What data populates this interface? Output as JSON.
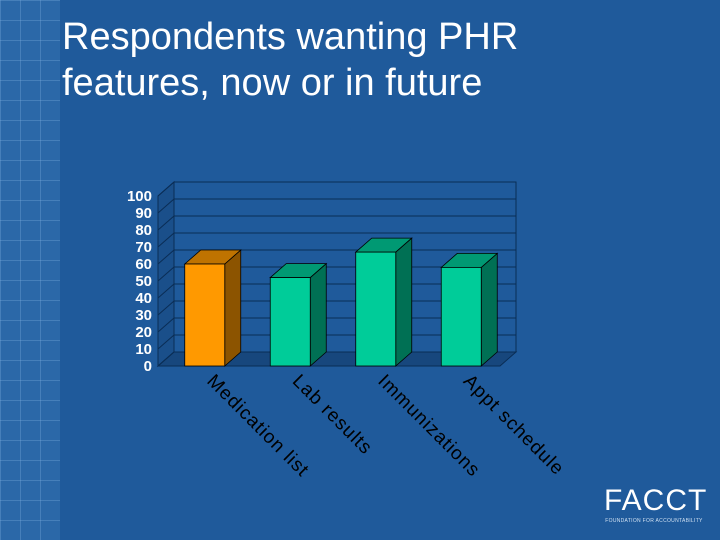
{
  "slide": {
    "title_line1": "Respondents wanting PHR",
    "title_line2": "features, now or in future"
  },
  "logo": {
    "text": "FACCT",
    "subtext": "Foundation for Accountability"
  },
  "colors": {
    "background": "#1f5a9b",
    "plot_area": "#1f5a9b",
    "medication_bar": "#ff9900",
    "other_bars": "#00cc99",
    "text": "#ffffff"
  },
  "chart_data": {
    "type": "bar",
    "categories": [
      "Medication list",
      "Lab results",
      "Immunizations",
      "Appt schedule"
    ],
    "values": [
      60,
      52,
      67,
      58
    ],
    "yticks": [
      0,
      10,
      20,
      30,
      40,
      50,
      60,
      70,
      80,
      90,
      100
    ],
    "ylim": [
      0,
      100
    ],
    "grid": true,
    "bar_colors": [
      "#ff9900",
      "#00cc99",
      "#00cc99",
      "#00cc99"
    ],
    "three_d": true
  }
}
